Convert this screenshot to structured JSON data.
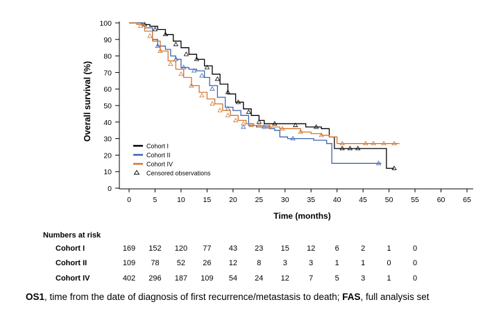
{
  "chart_data": {
    "type": "line",
    "subtype": "kaplan-meier",
    "ylabel": "Overall survival (%)",
    "xlabel": "Time (months)",
    "ylim": [
      0,
      100
    ],
    "xlim": [
      0,
      65
    ],
    "yticks": [
      0,
      10,
      20,
      30,
      40,
      50,
      60,
      70,
      80,
      90,
      100
    ],
    "xticks": [
      0,
      5,
      10,
      15,
      20,
      25,
      30,
      35,
      40,
      45,
      50,
      55,
      60,
      65
    ],
    "grid": false,
    "legend_position": "bottom-left",
    "censor_legend_label": "Censored observations",
    "series": [
      {
        "name": "Cohort I",
        "color": "#000000",
        "x": [
          0,
          1.2,
          2.5,
          4,
          5.5,
          7,
          8.5,
          10,
          11.5,
          13,
          14.5,
          16,
          17.5,
          19,
          20.5,
          22,
          23.5,
          25,
          26,
          30,
          34,
          35.5,
          37,
          38.5,
          39.5,
          43,
          48,
          49.5,
          51
        ],
        "y": [
          100,
          100,
          99,
          98,
          96,
          93,
          89,
          85,
          81,
          78,
          74,
          69,
          63,
          57,
          52,
          48,
          44,
          41,
          39,
          39,
          37,
          37,
          36,
          31,
          24,
          24,
          24,
          12,
          12
        ],
        "censor_x": [
          3,
          5,
          7,
          9,
          11,
          13,
          15,
          17,
          19,
          21,
          23,
          25,
          28,
          32,
          36,
          41,
          42.5,
          44,
          51
        ],
        "censor_y": [
          99,
          96,
          93,
          87,
          81,
          78,
          73,
          66,
          58,
          52,
          46,
          40,
          39,
          38,
          37,
          24,
          24,
          24,
          12
        ]
      },
      {
        "name": "Cohort II",
        "color": "#3a64b0",
        "x": [
          0,
          1.5,
          3,
          4.5,
          5.5,
          7,
          8,
          9,
          10,
          11.5,
          13,
          14.5,
          15.5,
          17,
          18.5,
          20,
          21.5,
          23,
          24.5,
          25.5,
          27,
          28,
          29,
          30.5,
          33,
          35.5,
          38,
          39,
          48,
          48.5
        ],
        "y": [
          100,
          100,
          97,
          90,
          86,
          84,
          80,
          78,
          73,
          72,
          71,
          67,
          62,
          55,
          49,
          47,
          44,
          38,
          37,
          37,
          36,
          35,
          31,
          30,
          30,
          29,
          27,
          15,
          15,
          15
        ],
        "censor_x": [
          5.5,
          9,
          10.5,
          12.5,
          14,
          16,
          19,
          22,
          26,
          31.5,
          48
        ],
        "censor_y": [
          86,
          78,
          73,
          71,
          68,
          60,
          48,
          37,
          37,
          30,
          15
        ]
      },
      {
        "name": "Cohort IV",
        "color": "#d4742a",
        "x": [
          0,
          1.5,
          3,
          4.5,
          6,
          7.5,
          9,
          10.5,
          12,
          13.5,
          15,
          16.5,
          18,
          19.5,
          21,
          22.5,
          24,
          25.5,
          27,
          29,
          31,
          33,
          35,
          37,
          38.5,
          40,
          45,
          50,
          52
        ],
        "y": [
          100,
          99,
          95,
          89,
          83,
          77,
          72,
          67,
          62,
          58,
          54,
          51,
          47,
          44,
          41,
          39,
          38,
          38,
          37,
          36,
          36,
          34,
          33,
          32,
          31,
          27,
          27,
          27,
          27
        ],
        "censor_x": [
          2.2,
          4,
          6,
          8,
          10,
          12,
          14,
          16,
          17.5,
          19,
          20.5,
          22,
          23.5,
          25,
          27,
          29.5,
          33,
          37,
          41,
          45.5,
          47,
          49,
          51
        ],
        "censor_y": [
          98,
          92,
          83,
          75,
          69,
          62,
          56,
          51,
          47,
          44,
          41,
          39,
          38,
          38,
          37,
          36,
          34,
          32,
          27,
          27,
          27,
          27,
          27
        ]
      }
    ],
    "risk_table": {
      "title": "Numbers at risk",
      "times": [
        0,
        5,
        10,
        15,
        20,
        25,
        30,
        35,
        40,
        45,
        50,
        55
      ],
      "rows": [
        {
          "label": "Cohort I",
          "values": [
            "169",
            "152",
            "120",
            "77",
            "43",
            "23",
            "15",
            "12",
            "6",
            "2",
            "1",
            "0"
          ]
        },
        {
          "label": "Cohort II",
          "values": [
            "109",
            "78",
            "52",
            "26",
            "12",
            "8",
            "3",
            "3",
            "1",
            "1",
            "0",
            "0"
          ]
        },
        {
          "label": "Cohort IV",
          "values": [
            "402",
            "296",
            "187",
            "109",
            "54",
            "24",
            "12",
            "7",
            "5",
            "3",
            "1",
            "0"
          ]
        }
      ]
    }
  },
  "footnote": {
    "term1": "OS1",
    "def1": ", time from the date of diagnosis of first recurrence/metastasis to death; ",
    "term2": "FAS",
    "def2": ", full analysis set"
  }
}
